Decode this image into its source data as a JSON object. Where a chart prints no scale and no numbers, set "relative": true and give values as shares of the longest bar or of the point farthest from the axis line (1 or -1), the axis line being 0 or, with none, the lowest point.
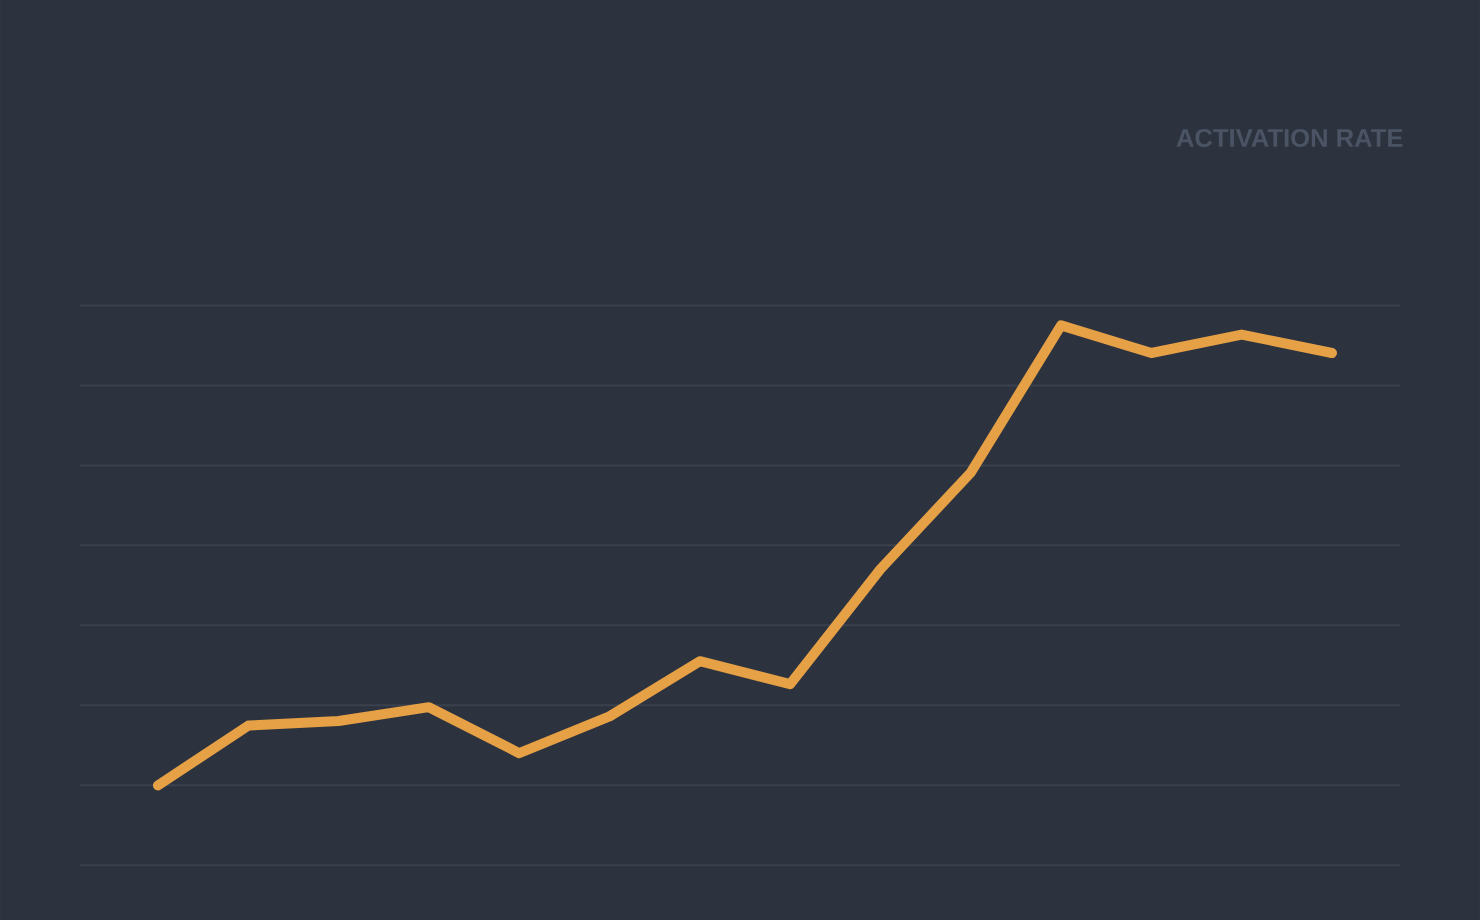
{
  "chart_data": {
    "type": "line",
    "title": "ACTIVATION RATE",
    "categories": [
      null,
      null,
      null,
      null,
      null,
      null,
      null,
      null,
      null,
      null,
      null,
      null,
      null,
      null
    ],
    "values": [
      0,
      0.13,
      0.14,
      0.17,
      0.07,
      0.15,
      0.27,
      0.22,
      0.47,
      0.68,
      1,
      0.94,
      0.98,
      0.94
    ],
    "color": "#e6a045",
    "relative": true,
    "grid": "y"
  }
}
